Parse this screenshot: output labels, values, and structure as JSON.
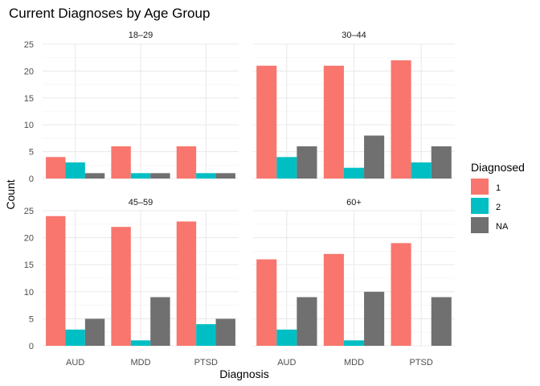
{
  "chart_data": {
    "type": "bar",
    "title": "Current Diagnoses by Age Group",
    "xlabel": "Diagnosis",
    "ylabel": "Count",
    "ylim": [
      0,
      25
    ],
    "yticks": [
      "0",
      "5",
      "10",
      "15",
      "20",
      "25"
    ],
    "categories": [
      "AUD",
      "MDD",
      "PTSD"
    ],
    "grid": true,
    "legend": {
      "title": "Diagnosed",
      "placement": "right",
      "entries": [
        {
          "label": "1",
          "color": "#F8766D"
        },
        {
          "label": "2",
          "color": "#00BFC4"
        },
        {
          "label": "NA",
          "color": "#707070"
        }
      ]
    },
    "panels": [
      {
        "facet": "18–29",
        "series": [
          {
            "name": "1",
            "values": [
              4,
              6,
              6
            ]
          },
          {
            "name": "2",
            "values": [
              3,
              1,
              1
            ]
          },
          {
            "name": "NA",
            "values": [
              1,
              1,
              1
            ]
          }
        ]
      },
      {
        "facet": "30–44",
        "series": [
          {
            "name": "1",
            "values": [
              21,
              21,
              22
            ]
          },
          {
            "name": "2",
            "values": [
              4,
              2,
              3
            ]
          },
          {
            "name": "NA",
            "values": [
              6,
              8,
              6
            ]
          }
        ]
      },
      {
        "facet": "45–59",
        "series": [
          {
            "name": "1",
            "values": [
              24,
              22,
              23
            ]
          },
          {
            "name": "2",
            "values": [
              3,
              1,
              4
            ]
          },
          {
            "name": "NA",
            "values": [
              5,
              9,
              5
            ]
          }
        ]
      },
      {
        "facet": "60+",
        "series": [
          {
            "name": "1",
            "values": [
              16,
              17,
              19
            ]
          },
          {
            "name": "2",
            "values": [
              3,
              1,
              null
            ]
          },
          {
            "name": "NA",
            "values": [
              9,
              10,
              9
            ]
          }
        ]
      }
    ]
  }
}
